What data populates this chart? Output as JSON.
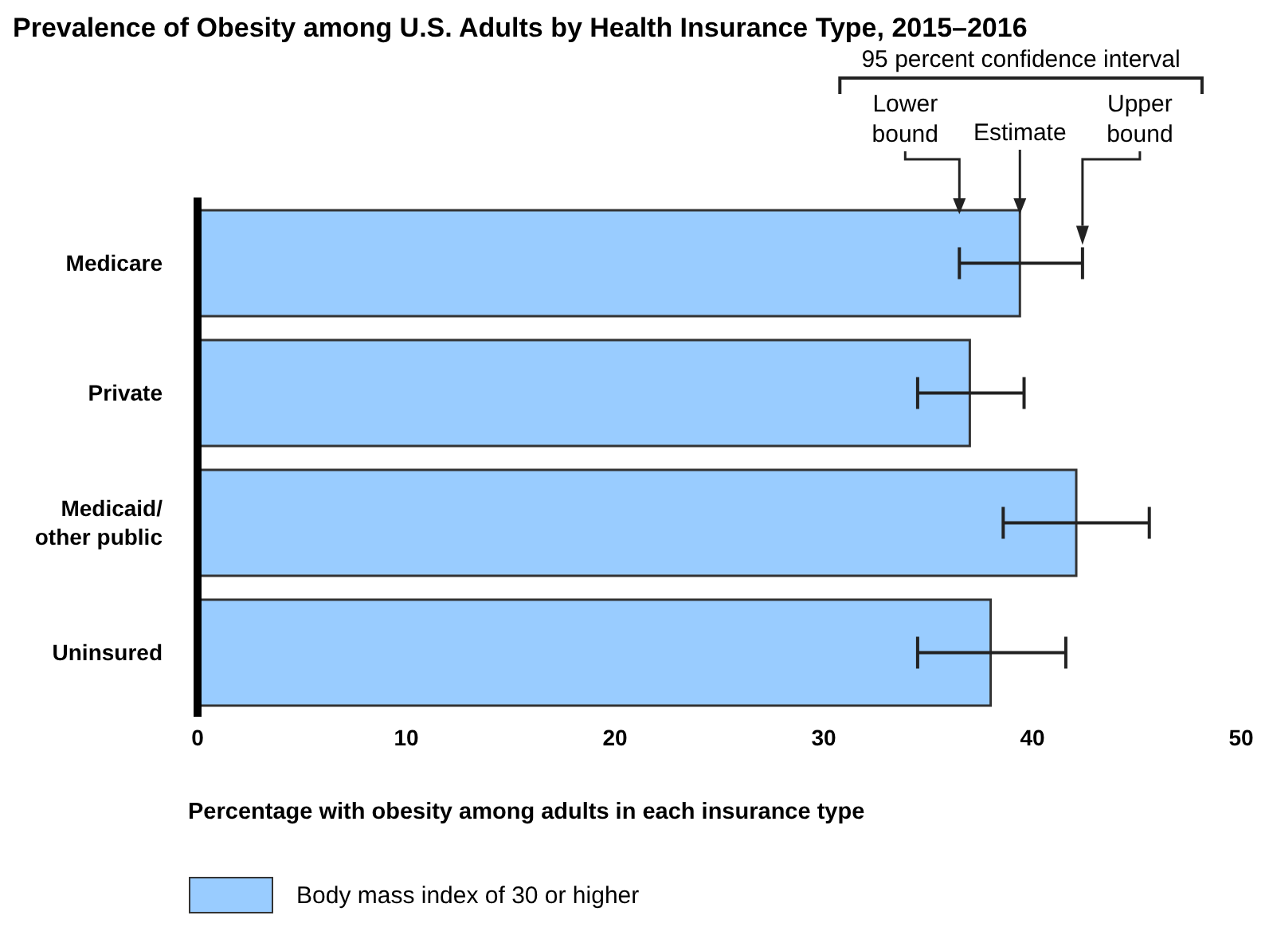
{
  "chart_data": {
    "type": "bar",
    "orientation": "horizontal",
    "title": "Prevalence of Obesity among U.S. Adults by Health Insurance Type, 2015–2016",
    "xlabel": "Percentage with obesity among adults in each insurance type",
    "categories": [
      "Medicare",
      "Private",
      "Medicaid/ other public",
      "Uninsured"
    ],
    "series": [
      {
        "name": "Body mass index of 30 or higher",
        "color": "#99ccff",
        "values": [
          39.4,
          37.0,
          42.1,
          38.0
        ],
        "errors": [
          [
            36.5,
            42.4
          ],
          [
            34.5,
            39.6
          ],
          [
            38.6,
            45.6
          ],
          [
            34.5,
            41.6
          ]
        ]
      }
    ],
    "xlim": [
      0,
      50
    ],
    "xticks": [
      0,
      10,
      20,
      30,
      40,
      50
    ],
    "legend": "bottom left",
    "grid": false,
    "annotations": [
      "95 percent confidence interval",
      "Lower bound",
      "Estimate",
      "Upper bound"
    ]
  }
}
